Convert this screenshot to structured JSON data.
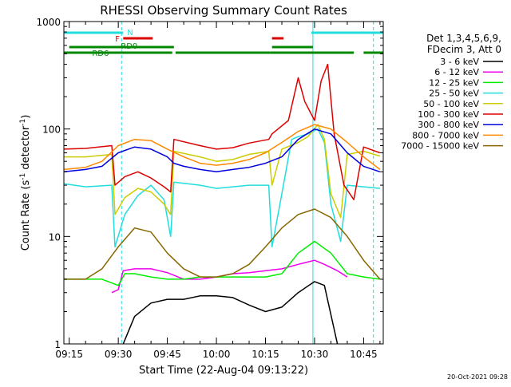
{
  "chart_data": {
    "type": "line",
    "title": "RHESSI Observing Summary Count Rates",
    "xlabel": "Start Time (22-Aug-04 09:13:22)",
    "ylabel_prefix": "Count Rate (s",
    "ylabel_sup1": "-1",
    "ylabel_mid": " detector",
    "ylabel_sup2": "-1",
    "ylabel_suffix": ")",
    "y_scale": "log",
    "ylim": [
      1,
      1000
    ],
    "xlim": [
      "09:13:22",
      "10:51:00"
    ],
    "x_ticks": [
      "09:15",
      "09:30",
      "09:45",
      "10:00",
      "10:15",
      "10:30",
      "10:45"
    ],
    "y_ticks": [
      {
        "label": "1000",
        "value": 1000
      },
      {
        "label": "100",
        "value": 100
      },
      {
        "label": "10",
        "value": 10
      },
      {
        "label": "1",
        "value": 1
      }
    ],
    "footer_timestamp": "20-Oct-2021 09:28",
    "legend_header": [
      "Det 1,3,4,5,6,9,",
      "FDecim 3, Att 0"
    ],
    "flags": [
      {
        "label": "N",
        "color": "#22dddd",
        "segments": [
          [
            "09:13:22",
            "09:31:30"
          ],
          [
            "10:29:00",
            "10:51:00"
          ]
        ]
      },
      {
        "label": "F",
        "color": "#dd0000",
        "segments": [
          [
            "09:31:30",
            "09:40:30"
          ],
          [
            "10:17:00",
            "10:20:30"
          ]
        ]
      },
      {
        "label": "RD0",
        "color": "#008800",
        "segments": [
          [
            "09:15:00",
            "09:47:00"
          ],
          [
            "10:17:00",
            "10:29:30"
          ]
        ]
      },
      {
        "label": "RD6",
        "color": "#008800",
        "segments": [
          [
            "09:13:22",
            "09:46:30"
          ],
          [
            "09:47:30",
            "10:16:30"
          ],
          [
            "10:16:30",
            "10:42:00"
          ],
          [
            "10:45:00",
            "10:51:00"
          ]
        ]
      }
    ],
    "markers": {
      "solid": [
        "09:13:22",
        "10:29:30"
      ],
      "dashed": [
        "09:31:00",
        "10:48:00"
      ]
    },
    "series": [
      {
        "name": "3 - 6 keV",
        "color": "#000000",
        "x": [
          "09:31:30",
          "09:35",
          "09:40",
          "09:45",
          "09:50",
          "09:55",
          "10:00",
          "10:05",
          "10:10",
          "10:15",
          "10:20",
          "10:25",
          "10:30",
          "10:33",
          "10:37"
        ],
        "y": [
          1,
          1.8,
          2.4,
          2.6,
          2.6,
          2.8,
          2.8,
          2.7,
          2.3,
          2.0,
          2.2,
          3.0,
          3.8,
          3.5,
          1.0
        ]
      },
      {
        "name": "6 - 12 keV",
        "color": "#ee00ee",
        "x": [
          "09:28",
          "09:30",
          "09:31:30",
          "09:35",
          "09:40",
          "09:45",
          "09:50",
          "09:55",
          "10:00",
          "10:05",
          "10:10",
          "10:15",
          "10:20",
          "10:25",
          "10:30",
          "10:33",
          "10:37",
          "10:40"
        ],
        "y": [
          3,
          3.2,
          4.8,
          5.0,
          5.0,
          4.6,
          4.0,
          4.0,
          4.2,
          4.5,
          4.6,
          4.8,
          5.0,
          5.5,
          6.0,
          5.5,
          4.8,
          4.2
        ]
      },
      {
        "name": "12 - 25 keV",
        "color": "#00ee00",
        "x": [
          "09:13:22",
          "09:20",
          "09:25",
          "09:30",
          "09:32",
          "09:35",
          "09:40",
          "09:45",
          "09:50",
          "09:55",
          "10:00",
          "10:05",
          "10:10",
          "10:15",
          "10:20",
          "10:25",
          "10:30",
          "10:35",
          "10:40",
          "10:45",
          "10:50"
        ],
        "y": [
          4.0,
          4.0,
          4.0,
          3.5,
          4.5,
          4.5,
          4.2,
          4.0,
          4.0,
          4.2,
          4.2,
          4.2,
          4.2,
          4.2,
          4.5,
          7.0,
          9.0,
          7.0,
          4.5,
          4.2,
          4.0
        ]
      },
      {
        "name": "25 - 50 keV",
        "color": "#22dddd",
        "x": [
          "09:13:22",
          "09:20",
          "09:28",
          "09:29",
          "09:32",
          "09:36",
          "09:40",
          "09:44",
          "09:46",
          "09:47",
          "09:55",
          "10:00",
          "10:05",
          "10:10",
          "10:16",
          "10:17",
          "10:20",
          "10:23",
          "10:25",
          "10:28",
          "10:31",
          "10:33",
          "10:35",
          "10:38",
          "10:40",
          "10:45",
          "10:50"
        ],
        "y": [
          31,
          29,
          30,
          8,
          16,
          24,
          30,
          22,
          10,
          32,
          30,
          28,
          29,
          30,
          30,
          8,
          25,
          80,
          85,
          90,
          100,
          75,
          20,
          9,
          30,
          29,
          28
        ]
      },
      {
        "name": "50 - 100 keV",
        "color": "#cccc00",
        "x": [
          "09:13:22",
          "09:20",
          "09:28",
          "09:29",
          "09:32",
          "09:36",
          "09:40",
          "09:44",
          "09:46",
          "09:47",
          "09:55",
          "10:00",
          "10:05",
          "10:10",
          "10:16",
          "10:17",
          "10:20",
          "10:25",
          "10:28",
          "10:31",
          "10:33",
          "10:35",
          "10:38",
          "10:40",
          "10:45",
          "10:50"
        ],
        "y": [
          55,
          55,
          58,
          16,
          23,
          28,
          26,
          20,
          16,
          62,
          55,
          50,
          52,
          58,
          62,
          30,
          65,
          75,
          85,
          110,
          80,
          25,
          15,
          58,
          62,
          56
        ]
      },
      {
        "name": "100 - 300 keV",
        "color": "#dd0000",
        "x": [
          "09:13:22",
          "09:20",
          "09:28",
          "09:29",
          "09:32",
          "09:36",
          "09:40",
          "09:44",
          "09:46",
          "09:47",
          "09:55",
          "10:00",
          "10:05",
          "10:10",
          "10:16",
          "10:17",
          "10:22",
          "10:25",
          "10:27",
          "10:30",
          "10:32",
          "10:34",
          "10:36",
          "10:39",
          "10:42",
          "10:45",
          "10:50"
        ],
        "y": [
          65,
          66,
          70,
          30,
          36,
          40,
          35,
          29,
          26,
          80,
          70,
          65,
          67,
          74,
          80,
          90,
          120,
          300,
          180,
          120,
          280,
          400,
          90,
          30,
          22,
          68,
          60
        ]
      },
      {
        "name": "300 - 800 keV",
        "color": "#0000dd",
        "x": [
          "09:13:22",
          "09:20",
          "09:25",
          "09:30",
          "09:35",
          "09:40",
          "09:45",
          "09:47",
          "09:50",
          "09:55",
          "10:00",
          "10:05",
          "10:10",
          "10:15",
          "10:20",
          "10:25",
          "10:30",
          "10:35",
          "10:40",
          "10:45",
          "10:50"
        ],
        "y": [
          40,
          42,
          45,
          60,
          68,
          65,
          55,
          48,
          45,
          42,
          40,
          42,
          44,
          48,
          55,
          80,
          100,
          90,
          60,
          45,
          40
        ]
      },
      {
        "name": "800 - 7000 keV",
        "color": "#ff8800",
        "x": [
          "09:13:22",
          "09:20",
          "09:25",
          "09:30",
          "09:35",
          "09:40",
          "09:45",
          "09:50",
          "09:55",
          "10:00",
          "10:05",
          "10:10",
          "10:15",
          "10:20",
          "10:25",
          "10:30",
          "10:35",
          "10:40",
          "10:45",
          "10:50"
        ],
        "y": [
          42,
          44,
          50,
          70,
          80,
          78,
          65,
          55,
          48,
          46,
          48,
          52,
          60,
          75,
          95,
          110,
          100,
          75,
          55,
          42
        ]
      },
      {
        "name": "7000 - 15000 keV",
        "color": "#886600",
        "x": [
          "09:13:22",
          "09:20",
          "09:25",
          "09:30",
          "09:35",
          "09:40",
          "09:45",
          "09:50",
          "09:55",
          "10:00",
          "10:05",
          "10:10",
          "10:15",
          "10:20",
          "10:25",
          "10:30",
          "10:35",
          "10:40",
          "10:45",
          "10:50"
        ],
        "y": [
          4,
          4,
          5,
          8,
          12,
          11,
          7,
          5,
          4.2,
          4.2,
          4.5,
          5.5,
          8,
          12,
          16,
          18,
          15,
          10,
          6,
          4
        ]
      }
    ]
  }
}
